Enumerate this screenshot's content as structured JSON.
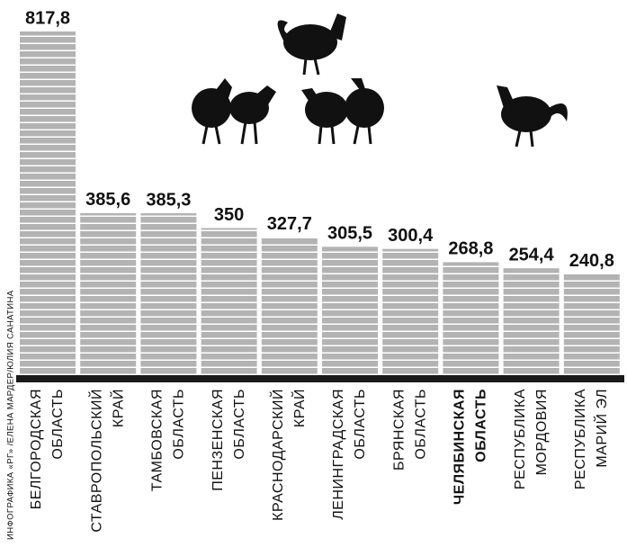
{
  "chart_data": {
    "type": "bar",
    "categories": [
      [
        "БЕЛГОРОДСКАЯ",
        "ОБЛАСТЬ"
      ],
      [
        "СТАВРОПОЛЬСКИЙ",
        "КРАЙ"
      ],
      [
        "ТАМБОВСКАЯ",
        "ОБЛАСТЬ"
      ],
      [
        "ПЕНЗЕНСКАЯ",
        "ОБЛАСТЬ"
      ],
      [
        "КРАСНОДАРСКИЙ",
        "КРАЙ"
      ],
      [
        "ЛЕНИНГРАДСКАЯ",
        "ОБЛАСТЬ"
      ],
      [
        "БРЯНСКАЯ",
        "ОБЛАСТЬ"
      ],
      [
        "ЧЕЛЯБИНСКАЯ",
        "ОБЛАСТЬ"
      ],
      [
        "РЕСПУБЛИКА",
        "МОРДОВИЯ"
      ],
      [
        "РЕСПУБЛИКА",
        "МАРИЙ ЭЛ"
      ]
    ],
    "values": [
      817.8,
      385.6,
      385.3,
      350,
      327.7,
      305.5,
      300.4,
      268.8,
      254.4,
      240.8
    ],
    "value_labels": [
      "817,8",
      "385,6",
      "385,3",
      "350",
      "327,7",
      "305,5",
      "300,4",
      "268,8",
      "254,4",
      "240,8"
    ],
    "color": "#b3b3b3",
    "highlight": 7,
    "highlight_color": "#888888",
    "ylim": [
      0,
      817.8
    ],
    "credit": "ИНФОГРАФИКА «РГ» /ЕЛЕНА МАРДЕР/ЮЛИЯ САНАТИНА"
  }
}
